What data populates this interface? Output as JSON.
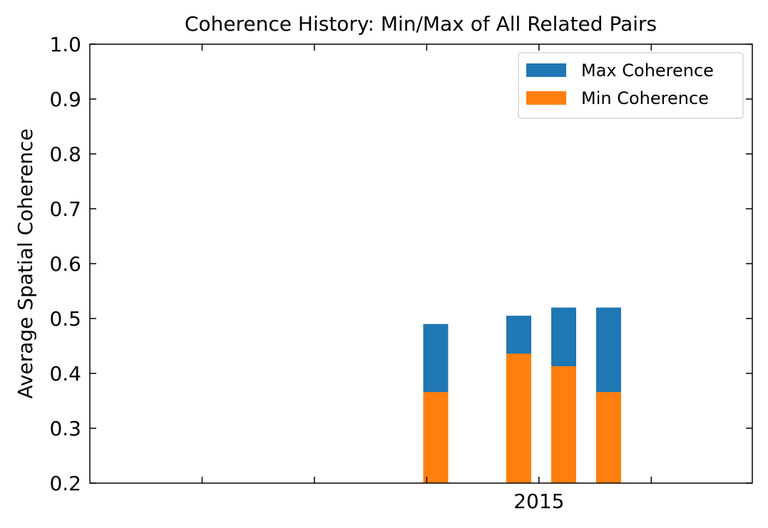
{
  "chart_data": {
    "type": "bar",
    "title": "Coherence History: Min/Max of All Related Pairs",
    "xlabel": "",
    "ylabel": "Average Spatial Coherence",
    "ylim": [
      0.2,
      1.0
    ],
    "yticks": [
      "0.2",
      "0.3",
      "0.4",
      "0.5",
      "0.6",
      "0.7",
      "0.8",
      "0.9",
      "1.0"
    ],
    "xticks": [
      {
        "value": 2012.0,
        "label": ""
      },
      {
        "value": 2013.0,
        "label": ""
      },
      {
        "value": 2014.0,
        "label": ""
      },
      {
        "value": 2015.0,
        "label": "2015"
      },
      {
        "value": 2016.0,
        "label": ""
      }
    ],
    "xlim": [
      2011.0,
      2016.9
    ],
    "legend_position": "top-right",
    "colors": {
      "max": "#1f77b4",
      "min": "#ff7f0e"
    },
    "series": [
      {
        "name": "Max Coherence",
        "bars": [
          {
            "x": 2014.08,
            "value": 0.49
          },
          {
            "x": 2014.82,
            "value": 0.505
          },
          {
            "x": 2015.22,
            "value": 0.52
          },
          {
            "x": 2015.62,
            "value": 0.52
          }
        ]
      },
      {
        "name": "Min Coherence",
        "bars": [
          {
            "x": 2014.08,
            "value": 0.366
          },
          {
            "x": 2014.82,
            "value": 0.436
          },
          {
            "x": 2015.22,
            "value": 0.413
          },
          {
            "x": 2015.62,
            "value": 0.366
          }
        ]
      }
    ]
  }
}
